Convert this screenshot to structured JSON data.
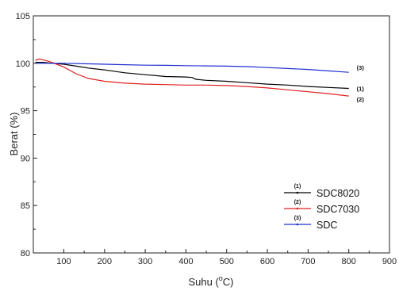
{
  "chart_data": {
    "type": "line",
    "xlabel": "Suhu (°C)",
    "xlabel_parts": {
      "main": "Suhu (",
      "sup": "o",
      "tail": "C)"
    },
    "ylabel": "Berat (%)",
    "xlim": [
      25,
      900
    ],
    "ylim": [
      80,
      105
    ],
    "xticks": [
      100,
      200,
      300,
      400,
      500,
      600,
      700,
      800,
      900
    ],
    "yticks": [
      80,
      85,
      90,
      95,
      100,
      105
    ],
    "legend_position": "bottom-right",
    "series": [
      {
        "name": "SDC8020",
        "marker_label": "(1)",
        "end_label": "(1)",
        "color": "#000000",
        "x": [
          30,
          50,
          70,
          100,
          130,
          160,
          200,
          250,
          300,
          350,
          400,
          415,
          425,
          450,
          500,
          550,
          600,
          650,
          700,
          750,
          800
        ],
        "y": [
          100.1,
          100.1,
          100.0,
          99.9,
          99.7,
          99.5,
          99.3,
          99.0,
          98.8,
          98.6,
          98.55,
          98.5,
          98.3,
          98.2,
          98.1,
          97.95,
          97.8,
          97.7,
          97.55,
          97.45,
          97.35
        ]
      },
      {
        "name": "SDC7030",
        "marker_label": "(2)",
        "end_label": "(2)",
        "color": "#e02020",
        "x": [
          30,
          40,
          55,
          70,
          100,
          130,
          160,
          200,
          250,
          300,
          350,
          400,
          450,
          500,
          550,
          600,
          650,
          700,
          750,
          800
        ],
        "y": [
          100.3,
          100.45,
          100.3,
          100.1,
          99.6,
          98.9,
          98.4,
          98.1,
          97.9,
          97.8,
          97.75,
          97.7,
          97.7,
          97.65,
          97.55,
          97.4,
          97.2,
          97.0,
          96.8,
          96.55
        ]
      },
      {
        "name": "SDC",
        "marker_label": "(3)",
        "end_label": "(3)",
        "color": "#2030d0",
        "x": [
          30,
          60,
          100,
          150,
          200,
          250,
          300,
          350,
          400,
          450,
          500,
          550,
          600,
          650,
          700,
          750,
          800
        ],
        "y": [
          100.0,
          100.0,
          100.0,
          99.95,
          99.9,
          99.85,
          99.8,
          99.78,
          99.75,
          99.72,
          99.7,
          99.65,
          99.55,
          99.45,
          99.35,
          99.2,
          99.05
        ]
      }
    ]
  }
}
